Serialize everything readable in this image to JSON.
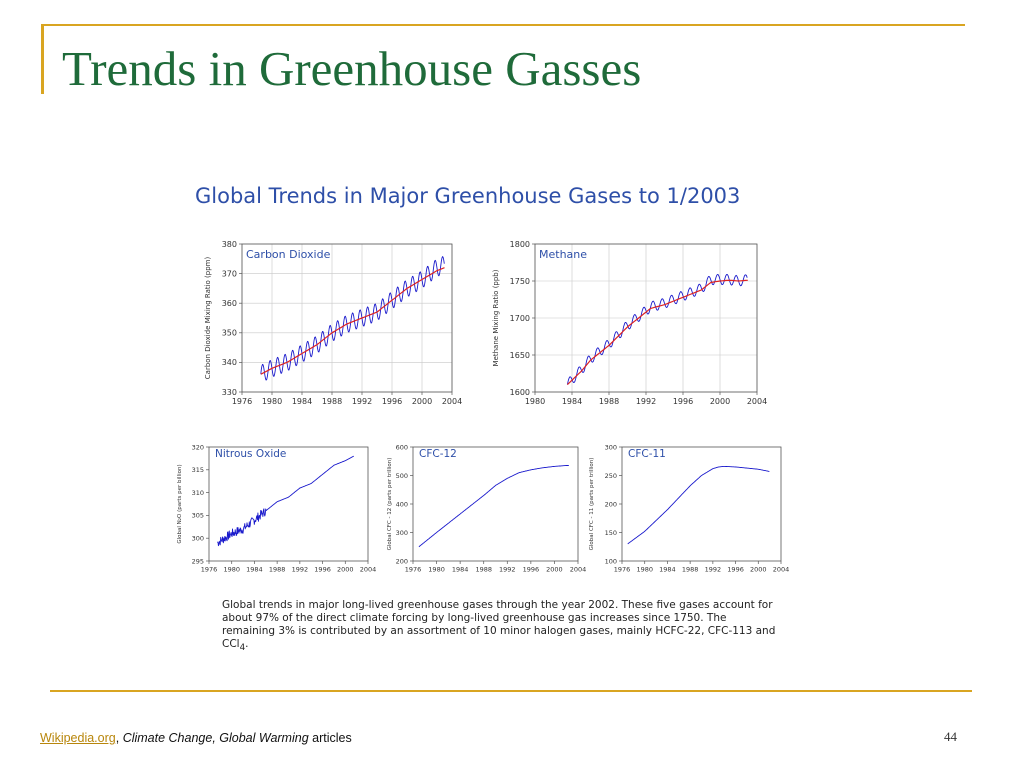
{
  "slide": {
    "title": "Trends in Greenhouse Gasses",
    "page_number": "44",
    "footer": {
      "link_text": "Wikipedia.org",
      "separator": ", ",
      "topics": "Climate Change, Global Warming",
      "suffix": " articles"
    }
  },
  "figure": {
    "title": "Global Trends in Major Greenhouse Gases to 1/2003",
    "caption": "Global trends in major long-lived greenhouse gases through the year 2002.  These five gases account for about 97% of the direct climate forcing by long-lived greenhouse gas increases since 1750.  The remaining 3% is contributed by an assortment of 10 minor halogen gases, mainly HCFC-22, CFC-113 and CCl",
    "caption_sub": "4",
    "caption_end": "."
  },
  "colors": {
    "title": "#1f6b3a",
    "figure_title": "#2e4fa8",
    "rule": "#d9a521",
    "series_measured": "#1a1acc",
    "series_trend": "#dd2222"
  },
  "chart_data": [
    {
      "id": "co2",
      "type": "line",
      "label": "Carbon Dioxide",
      "ylabel": "Carbon Dioxide Mixing Ratio (ppm)",
      "xlim": [
        1976,
        2004
      ],
      "ylim": [
        330,
        380
      ],
      "xticks": [
        1976,
        1980,
        1984,
        1988,
        1992,
        1996,
        2000,
        2004
      ],
      "yticks": [
        330,
        340,
        350,
        360,
        370,
        380
      ],
      "grid": true,
      "seasonal_amplitude": 3,
      "series": [
        {
          "color": "#1a1acc",
          "x": [
            1978.5,
            1980,
            1982,
            1984,
            1986,
            1988,
            1990,
            1992,
            1994,
            1996,
            1998,
            2000,
            2002,
            2003
          ],
          "y": [
            336,
            338,
            340,
            343,
            346,
            350,
            353,
            355,
            357,
            361,
            365,
            368,
            372,
            373
          ]
        },
        {
          "color": "#dd2222",
          "x": [
            1978.5,
            1980,
            1982,
            1984,
            1986,
            1988,
            1990,
            1992,
            1994,
            1996,
            1998,
            2000,
            2002,
            2003
          ],
          "y": [
            336,
            338,
            340,
            343,
            346,
            350,
            353,
            355,
            357,
            361,
            365,
            368,
            371,
            372
          ]
        }
      ]
    },
    {
      "id": "ch4",
      "type": "line",
      "label": "Methane",
      "ylabel": "Methane Mixing Ratio (ppb)",
      "xlim": [
        1980,
        2004
      ],
      "ylim": [
        1600,
        1800
      ],
      "xticks": [
        1980,
        1984,
        1988,
        1992,
        1996,
        2000,
        2004
      ],
      "yticks": [
        1600,
        1650,
        1700,
        1750,
        1800
      ],
      "grid": true,
      "seasonal_amplitude": 7,
      "series": [
        {
          "color": "#1a1acc",
          "x": [
            1983.5,
            1985,
            1986,
            1988,
            1990,
            1991.5,
            1992.5,
            1994,
            1996,
            1998,
            1999,
            2000,
            2001,
            2002,
            2003
          ],
          "y": [
            1610,
            1630,
            1645,
            1665,
            1690,
            1705,
            1715,
            1720,
            1730,
            1740,
            1752,
            1752,
            1752,
            1750,
            1752
          ]
        },
        {
          "color": "#dd2222",
          "x": [
            1983.5,
            1985,
            1986,
            1988,
            1990,
            1991.5,
            1992.5,
            1994,
            1996,
            1998,
            1999,
            2000,
            2001,
            2002,
            2003
          ],
          "y": [
            1610,
            1628,
            1643,
            1663,
            1688,
            1703,
            1713,
            1718,
            1728,
            1738,
            1748,
            1750,
            1751,
            1750,
            1751
          ]
        }
      ]
    },
    {
      "id": "n2o",
      "type": "line",
      "label": "Nitrous Oxide",
      "ylabel": "Global N₂O (parts per billion)",
      "xlim": [
        1976,
        2004
      ],
      "ylim": [
        295,
        320
      ],
      "xticks": [
        1976,
        1980,
        1984,
        1988,
        1992,
        1996,
        2000,
        2004
      ],
      "xticklabels": [
        "1976",
        "1980",
        "1984",
        "1988",
        "1992",
        "1996",
        "2000",
        "2004"
      ],
      "yticks": [
        295,
        300,
        305,
        310,
        315,
        320
      ],
      "grid": false,
      "noise": 1.0,
      "noise_until": 1986,
      "series": [
        {
          "color": "#1a1acc",
          "x": [
            1977.5,
            1980,
            1982,
            1984,
            1986,
            1988,
            1990,
            1992,
            1994,
            1996,
            1998,
            2000,
            2001.5
          ],
          "y": [
            299,
            301,
            302,
            304,
            306,
            308,
            309,
            311,
            312,
            314,
            316,
            317,
            318
          ]
        }
      ]
    },
    {
      "id": "cfc12",
      "type": "line",
      "label": "CFC-12",
      "ylabel": "Global CFC - 12 (parts per trillion)",
      "xlim": [
        1976,
        2004
      ],
      "ylim": [
        200,
        600
      ],
      "xticks": [
        1976,
        1980,
        1984,
        1988,
        1992,
        1996,
        2000,
        2004
      ],
      "yticks": [
        200,
        300,
        400,
        500,
        600
      ],
      "grid": false,
      "series": [
        {
          "color": "#1a1acc",
          "x": [
            1977,
            1980,
            1984,
            1988,
            1990,
            1992,
            1994,
            1996,
            1998,
            2000,
            2002,
            2002.5
          ],
          "y": [
            250,
            300,
            365,
            430,
            465,
            490,
            510,
            520,
            527,
            532,
            535,
            535
          ]
        }
      ]
    },
    {
      "id": "cfc11",
      "type": "line",
      "label": "CFC-11",
      "ylabel": "Global CFC - 11 (parts per trillion)",
      "xlim": [
        1976,
        2004
      ],
      "ylim": [
        100,
        300
      ],
      "xticks": [
        1976,
        1980,
        1984,
        1988,
        1992,
        1996,
        2000,
        2004
      ],
      "yticks": [
        100,
        150,
        200,
        250,
        300
      ],
      "grid": false,
      "series": [
        {
          "color": "#1a1acc",
          "x": [
            1977,
            1980,
            1984,
            1988,
            1990,
            1992,
            1993,
            1994,
            1996,
            1998,
            2000,
            2002
          ],
          "y": [
            130,
            152,
            190,
            232,
            250,
            262,
            265,
            266,
            265,
            263,
            261,
            257
          ]
        }
      ]
    }
  ]
}
